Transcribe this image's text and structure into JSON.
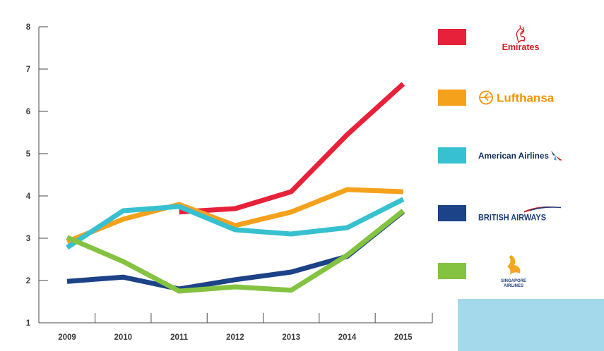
{
  "chart_data": {
    "type": "line",
    "x": [
      "2009",
      "2010",
      "2011",
      "2012",
      "2013",
      "2014",
      "2015"
    ],
    "y_ticks": [
      "1",
      "2",
      "3",
      "4",
      "5",
      "6",
      "7",
      "8"
    ],
    "ylim": [
      1,
      8
    ],
    "grid": false,
    "legend_position": "right",
    "series": [
      {
        "name": "Emirates",
        "color": "#e8213a",
        "logo_icon": "emirates-logo-icon",
        "values": [
          null,
          null,
          3.62,
          3.7,
          4.1,
          5.45,
          6.65
        ]
      },
      {
        "name": "Lufthansa",
        "color": "#f5a11c",
        "logo_icon": "lufthansa-crane-icon",
        "values": [
          2.92,
          3.45,
          3.8,
          3.3,
          3.62,
          4.15,
          4.1
        ]
      },
      {
        "name": "American Airlines",
        "color": "#37c0cf",
        "logo_icon": "american-airlines-flight-symbol-icon",
        "values": [
          2.78,
          3.65,
          3.75,
          3.2,
          3.1,
          3.25,
          3.92
        ]
      },
      {
        "name": "BRITISH AIRWAYS",
        "color": "#1c4287",
        "logo_icon": "british-airways-speedmarque-icon",
        "values": [
          1.98,
          2.08,
          1.8,
          2.02,
          2.2,
          2.57,
          3.63
        ]
      },
      {
        "name": "SINGAPORE AIRLINES",
        "color": "#84c341",
        "logo_icon": "singapore-airlines-bird-icon",
        "values": [
          3.02,
          2.45,
          1.75,
          1.85,
          1.77,
          2.6,
          3.65
        ]
      }
    ]
  },
  "decor": {
    "corner_box_color": "#a3d9ea"
  }
}
